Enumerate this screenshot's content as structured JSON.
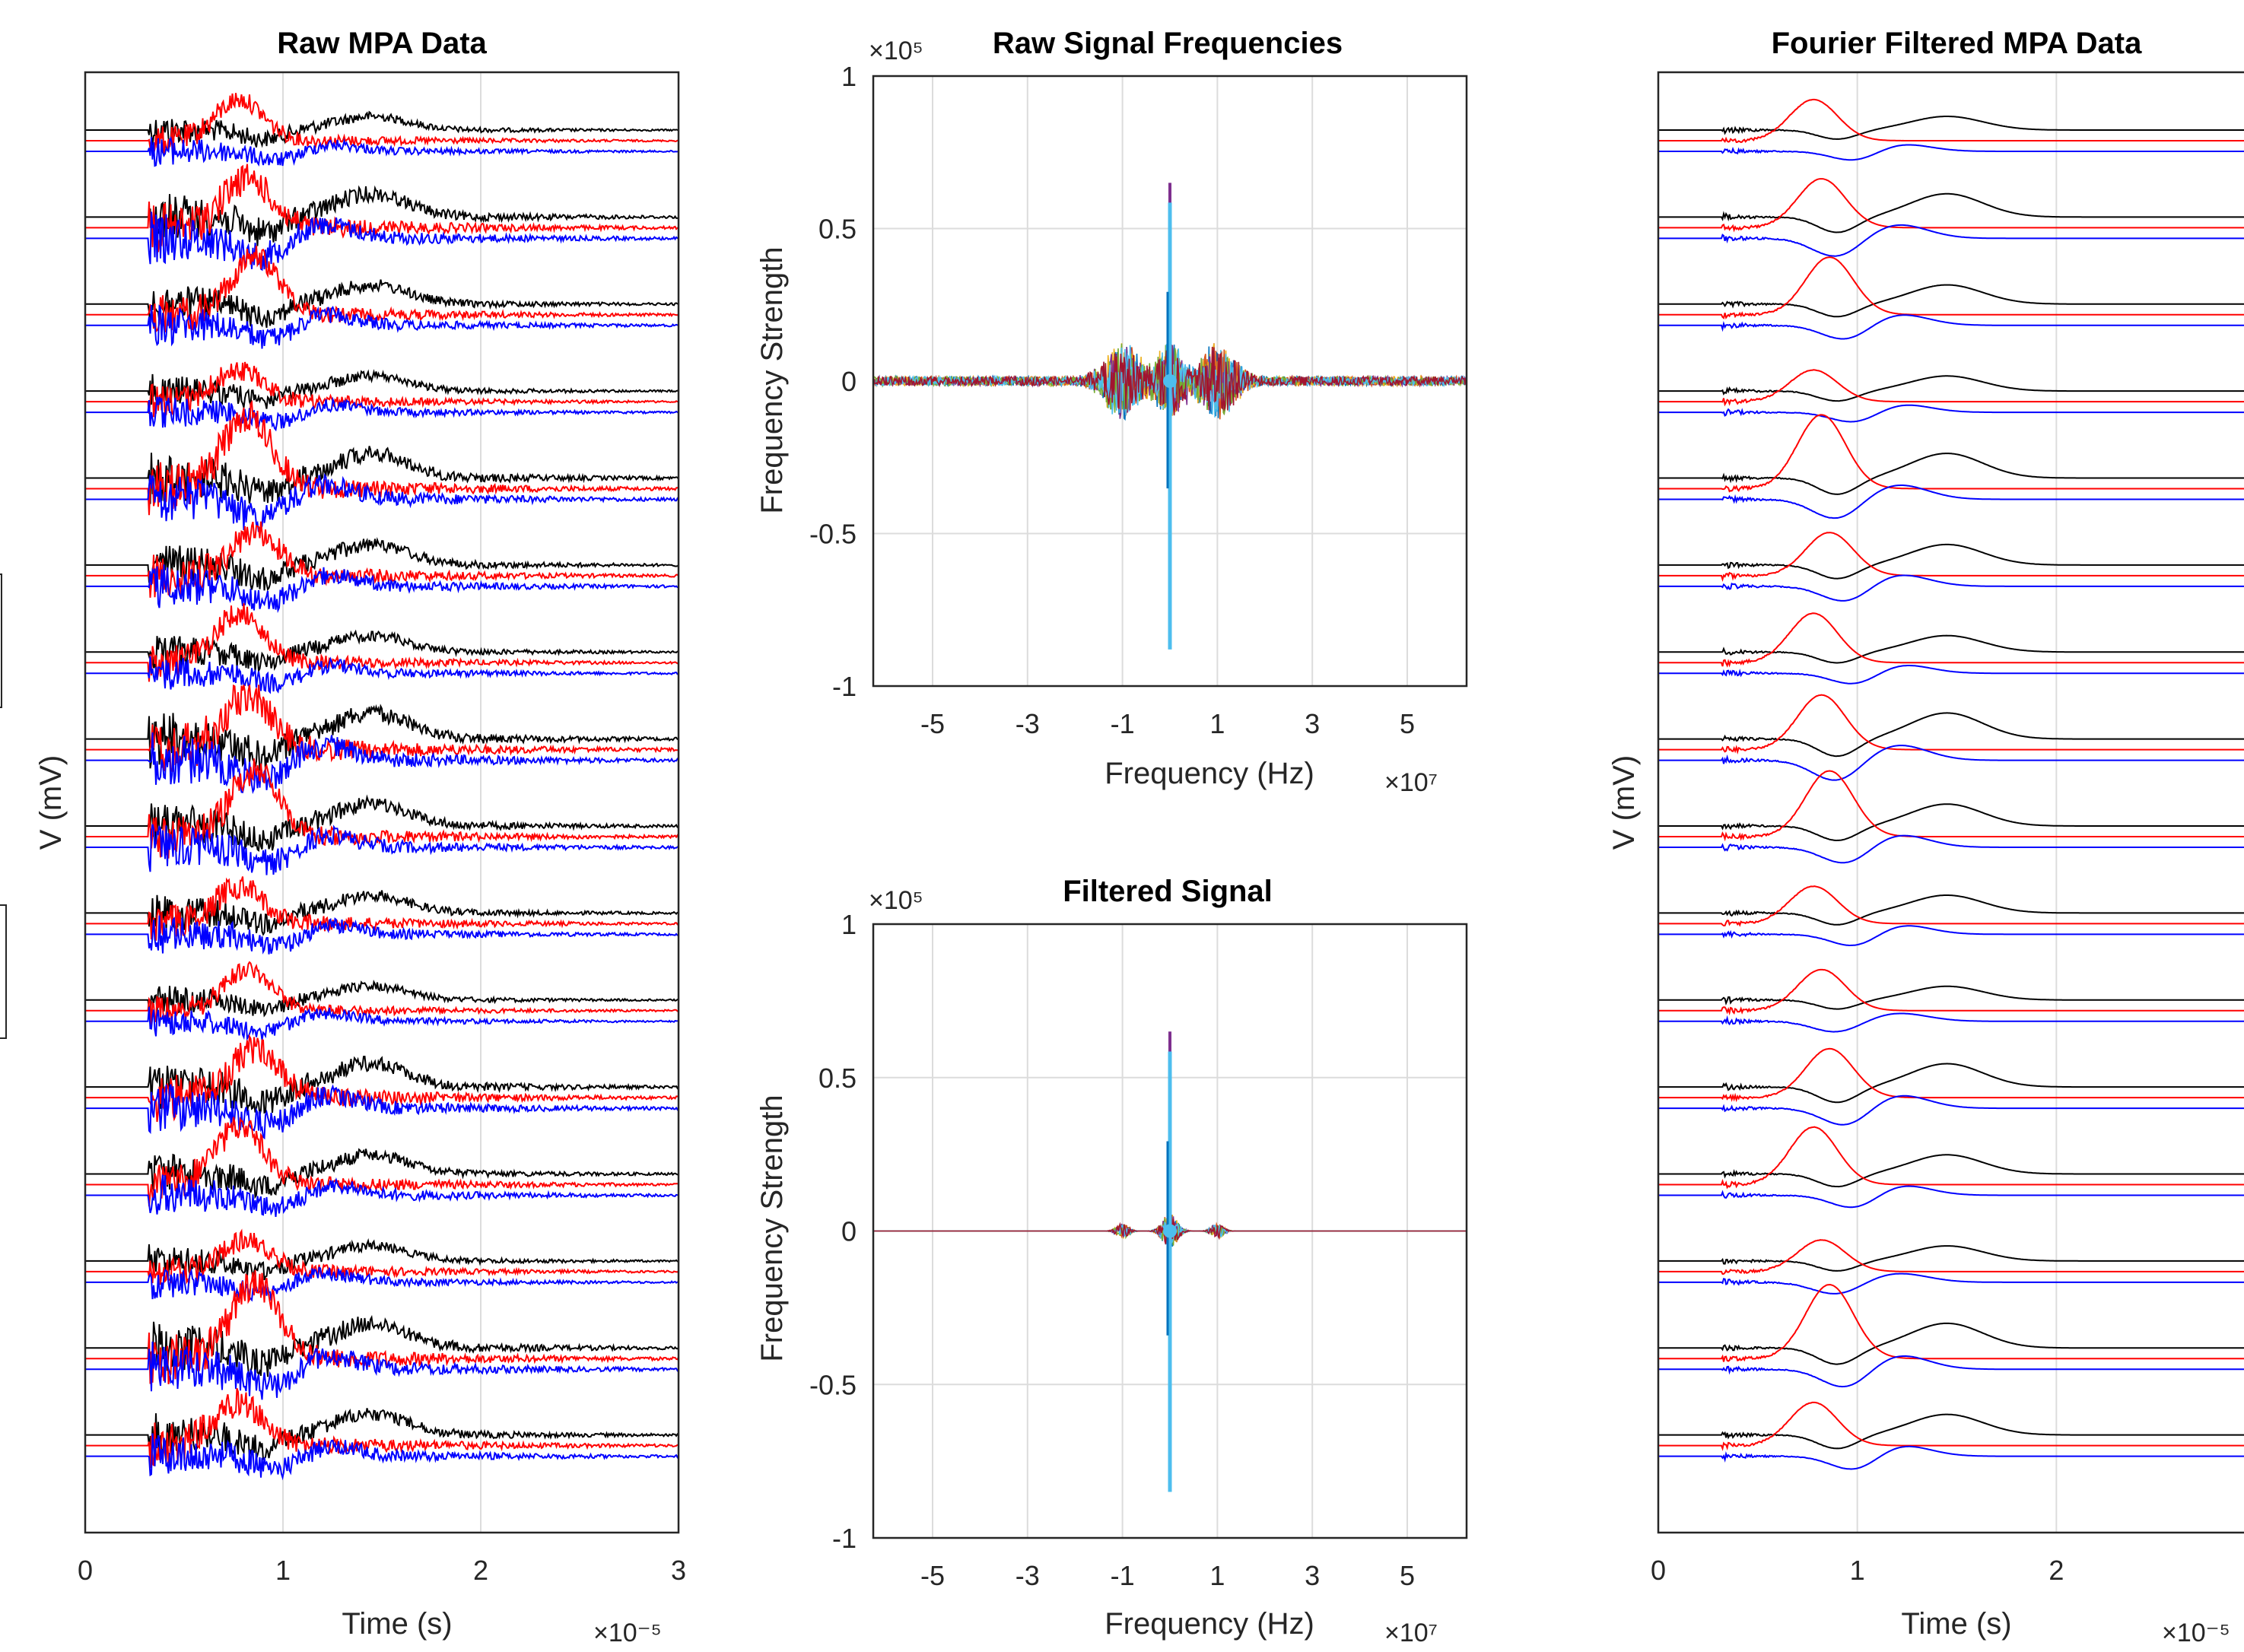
{
  "chart_data": [
    {
      "type": "line",
      "title": "Raw MPA Data",
      "xlabel": "Time (s)",
      "ylabel": "V (mV)",
      "x_tick_labels": [
        "0",
        "1",
        "2",
        "3"
      ],
      "x_exponent": "×10⁻⁵",
      "xlim": [
        0,
        3e-05
      ],
      "x_scale": 1e-05,
      "grid": true,
      "num_channels": 16,
      "series": [
        {
          "name": "",
          "color": "#000000"
        },
        {
          "name": "",
          "color": "#ff0000"
        },
        {
          "name": "",
          "color": "#0000ff"
        }
      ]
    },
    {
      "type": "line",
      "title": "Raw Signal Frequencies",
      "xlabel": "Frequency (Hz)",
      "ylabel": "Frequency Strength",
      "x_tick_labels": [
        "-5",
        "-3",
        "-1",
        "1",
        "3",
        "5"
      ],
      "y_tick_labels": [
        "1",
        "0.5",
        "0",
        "-0.5",
        "-1"
      ],
      "x_exponent": "×10⁷",
      "y_exponent": "×10⁵",
      "xlim": [
        -62500000.0,
        62500000.0
      ],
      "ylim": [
        -100000.0,
        100000.0
      ],
      "grid": true,
      "peak": {
        "x": 0,
        "y_max": 65000,
        "y_min": -88000
      },
      "side_bursts": [
        -10000000.0,
        10000000.0
      ]
    },
    {
      "type": "line",
      "title": "Filtered Signal",
      "xlabel": "Frequency (Hz)",
      "ylabel": "Frequency Strength",
      "x_tick_labels": [
        "-5",
        "-3",
        "-1",
        "1",
        "3",
        "5"
      ],
      "y_tick_labels": [
        "1",
        "0.5",
        "0",
        "-0.5",
        "-1"
      ],
      "x_exponent": "×10⁷",
      "y_exponent": "×10⁵",
      "xlim": [
        -62500000.0,
        62500000.0
      ],
      "ylim": [
        -100000.0,
        100000.0
      ],
      "grid": true,
      "peak": {
        "x": 0,
        "y_max": 65000,
        "y_min": -85000
      },
      "side_bursts": [
        -10000000.0,
        10000000.0
      ]
    },
    {
      "type": "line",
      "title": "Fourier Filtered MPA Data",
      "xlabel": "Time (s)",
      "ylabel": "V (mV)",
      "x_tick_labels": [
        "0",
        "1",
        "2"
      ],
      "x_exponent": "×10⁻⁵",
      "xlim": [
        0,
        3e-05
      ],
      "x_scale": 1e-05,
      "grid": true,
      "num_channels": 16,
      "series": [
        {
          "name": "",
          "color": "#000000"
        },
        {
          "name": "",
          "color": "#ff0000"
        },
        {
          "name": "",
          "color": "#0000ff"
        }
      ]
    }
  ]
}
